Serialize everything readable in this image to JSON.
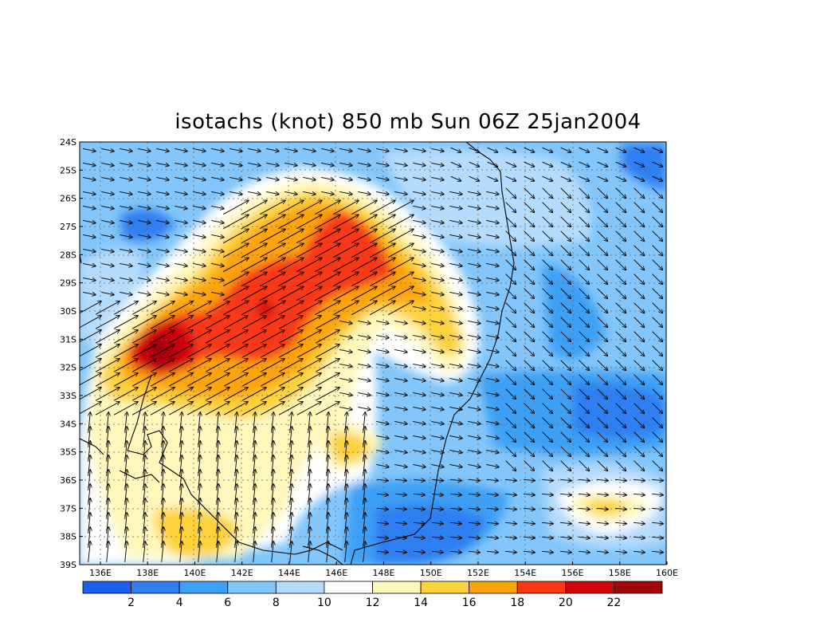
{
  "title": "isotachs (knot) 850 mb Sun 06Z 25jan2004",
  "lat_labels": [
    "24S",
    "25S",
    "26S",
    "27S",
    "28S",
    "29S",
    "30S",
    "31S",
    "32S",
    "33S",
    "34S",
    "35S",
    "36S",
    "37S",
    "38S",
    "39S"
  ],
  "lon_labels": [
    "136E",
    "138E",
    "140E",
    "142E",
    "144E",
    "146E",
    "148E",
    "150E",
    "152E",
    "154E",
    "156E",
    "158E",
    "160E"
  ],
  "colorbar": {
    "labels": [
      "2",
      "4",
      "6",
      "8",
      "10",
      "12",
      "14",
      "16",
      "18",
      "20",
      "22"
    ],
    "colors": [
      "#1c5fee",
      "#2f7ff2",
      "#3da0f5",
      "#82c6fb",
      "#b6dcfd",
      "#ffffff",
      "#fff8bd",
      "#fdd23b",
      "#fca40b",
      "#fb3816",
      "#d2060a",
      "#a10607"
    ]
  },
  "map": {
    "lon_range": [
      135.3,
      160.0
    ],
    "lat_range": [
      -39.0,
      -24.0
    ],
    "variable": "isotachs",
    "units": "knot",
    "level": "850 mb"
  }
}
